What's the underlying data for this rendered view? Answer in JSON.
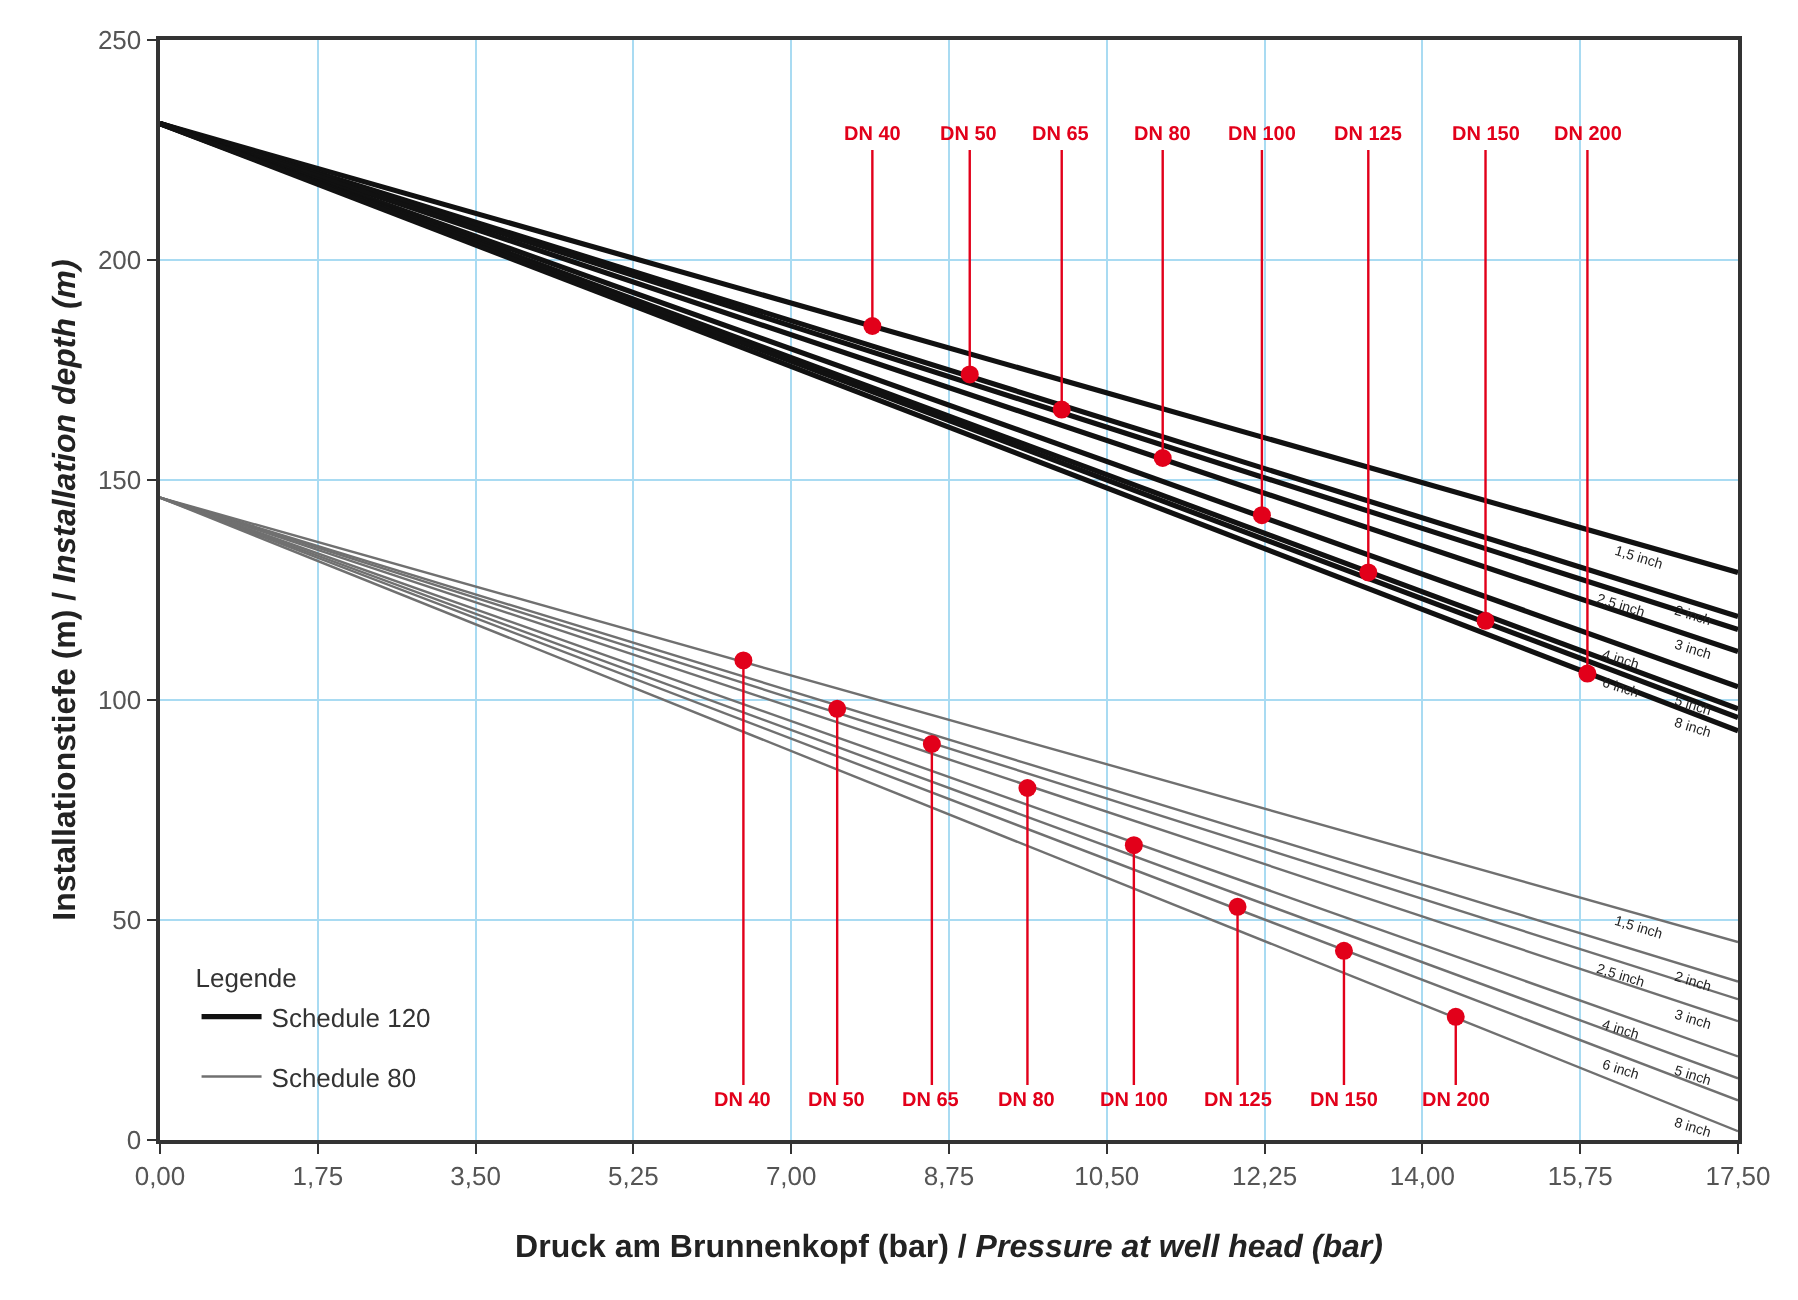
{
  "chart_data": {
    "type": "line",
    "xlabel": "Druck am Brunnenkopf (bar) / Pressure at well head (bar)",
    "ylabel": "Installationstiefe (m) / Installation depth (m)",
    "legend_title": "Legende",
    "legend": "bottom left",
    "grid": true,
    "marker": "none",
    "xlim": [
      0,
      17.5
    ],
    "ylim": [
      0,
      250
    ],
    "xticks": [
      {
        "value": 0,
        "label": "0,00"
      },
      {
        "value": 1.75,
        "label": "1,75"
      },
      {
        "value": 3.5,
        "label": "3,50"
      },
      {
        "value": 5.25,
        "label": "5,25"
      },
      {
        "value": 7,
        "label": "7,00"
      },
      {
        "value": 8.75,
        "label": "8,75"
      },
      {
        "value": 10.5,
        "label": "10,50"
      },
      {
        "value": 12.25,
        "label": "12,25"
      },
      {
        "value": 14,
        "label": "14,00"
      },
      {
        "value": 15.75,
        "label": "15,75"
      },
      {
        "value": 17.5,
        "label": "17,50"
      }
    ],
    "yticks": [
      0,
      50,
      100,
      150,
      200,
      250
    ],
    "series": [
      {
        "name": "Schedule 120",
        "color": "#111111",
        "x": [
          0,
          17.5
        ],
        "values": [
          231,
          129
        ]
      },
      {
        "color": "#111111",
        "x": [
          0,
          17.5
        ],
        "values": [
          231,
          119
        ]
      },
      {
        "color": "#111111",
        "x": [
          0,
          17.5
        ],
        "values": [
          231,
          116
        ]
      },
      {
        "color": "#111111",
        "x": [
          0,
          17.5
        ],
        "values": [
          231,
          111
        ]
      },
      {
        "color": "#111111",
        "x": [
          0,
          17.5
        ],
        "values": [
          231,
          103
        ]
      },
      {
        "color": "#111111",
        "x": [
          0,
          17.5
        ],
        "values": [
          231,
          98
        ]
      },
      {
        "color": "#111111",
        "x": [
          0,
          17.5
        ],
        "values": [
          231,
          96
        ]
      },
      {
        "color": "#111111",
        "x": [
          0,
          17.5
        ],
        "values": [
          231,
          93
        ]
      },
      {
        "name": "Schedule 80",
        "color": "#707070",
        "x": [
          0,
          17.5
        ],
        "values": [
          146,
          45
        ]
      },
      {
        "color": "#707070",
        "x": [
          0,
          17.5
        ],
        "values": [
          146,
          36
        ]
      },
      {
        "color": "#707070",
        "x": [
          0,
          17.5
        ],
        "values": [
          146,
          32
        ]
      },
      {
        "color": "#707070",
        "x": [
          0,
          17.5
        ],
        "values": [
          146,
          27
        ]
      },
      {
        "color": "#707070",
        "x": [
          0,
          17.5
        ],
        "values": [
          146,
          19
        ]
      },
      {
        "color": "#707070",
        "x": [
          0,
          17.5
        ],
        "values": [
          146,
          14
        ]
      },
      {
        "color": "#707070",
        "x": [
          0,
          17.5
        ],
        "values": [
          146,
          9
        ]
      },
      {
        "color": "#707070",
        "x": [
          0,
          17.5
        ],
        "values": [
          146,
          2
        ]
      },
      {
        "type": "scatter",
        "marker": "circle",
        "color": "#e2001a",
        "x": [
          7.9,
          8.98,
          10.0,
          11.12,
          12.22,
          13.4,
          14.7,
          15.83
        ],
        "values": [
          185,
          174,
          166,
          155,
          142,
          129,
          118,
          106
        ],
        "value_labels": [
          "DN 40",
          "DN 50",
          "DN 65",
          "DN 80",
          "DN 100",
          "DN 125",
          "DN 150",
          "DN 200"
        ]
      },
      {
        "type": "scatter",
        "marker": "circle",
        "color": "#e2001a",
        "x": [
          6.47,
          7.51,
          8.56,
          9.62,
          10.8,
          11.95,
          13.13,
          14.37
        ],
        "values": [
          109,
          98,
          90,
          80,
          67,
          53,
          43,
          28
        ],
        "value_labels": [
          "DN 40",
          "DN 50",
          "DN 65",
          "DN 80",
          "DN 100",
          "DN 125",
          "DN 150",
          "DN 200"
        ]
      }
    ],
    "annotations": [
      {
        "text": "1,5 inch",
        "x": 16.4,
        "y": 135.4
      },
      {
        "text": "2 inch",
        "x": 17.0,
        "y": 122.2
      },
      {
        "text": "2,5 inch",
        "x": 16.2,
        "y": 124.5
      },
      {
        "text": "3 inch",
        "x": 17.0,
        "y": 114.4
      },
      {
        "text": "4 inch",
        "x": 16.2,
        "y": 112.5
      },
      {
        "text": "5 inch",
        "x": 17.0,
        "y": 101.8
      },
      {
        "text": "6 inch",
        "x": 16.2,
        "y": 106.0
      },
      {
        "text": "8 inch",
        "x": 17.0,
        "y": 96.9
      },
      {
        "text": "1,5 inch",
        "x": 16.4,
        "y": 51.4
      },
      {
        "text": "2 inch",
        "x": 17.0,
        "y": 39.1
      },
      {
        "text": "2,5 inch",
        "x": 16.2,
        "y": 40.5
      },
      {
        "text": "3 inch",
        "x": 17.0,
        "y": 30.4
      },
      {
        "text": "4 inch",
        "x": 16.2,
        "y": 28.4
      },
      {
        "text": "5 inch",
        "x": 17.0,
        "y": 17.8
      },
      {
        "text": "6 inch",
        "x": 16.2,
        "y": 19.2
      },
      {
        "text": "8 inch",
        "x": 17.0,
        "y": 6.1
      }
    ]
  }
}
